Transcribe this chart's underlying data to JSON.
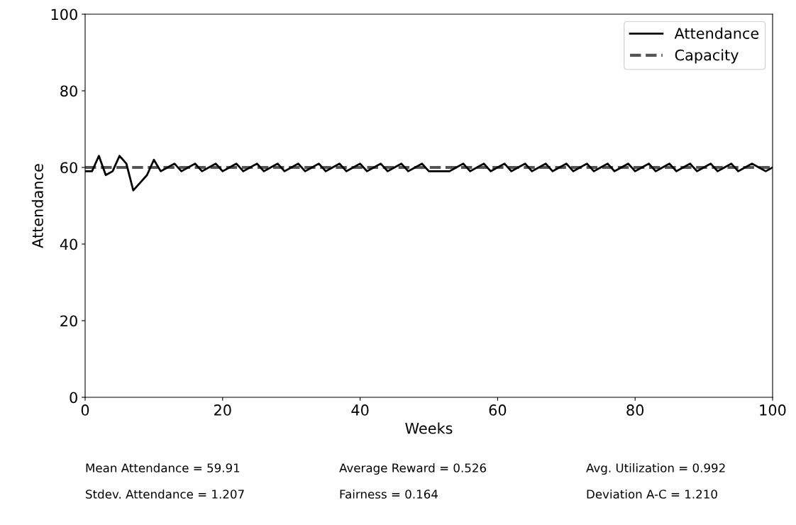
{
  "chart_data": {
    "type": "line",
    "xlabel": "Weeks",
    "ylabel": "Attendance",
    "xlim": [
      0,
      100
    ],
    "xticks": [
      0,
      20,
      40,
      60,
      80,
      100
    ],
    "ylim": [
      0,
      100
    ],
    "yticks": [
      0,
      20,
      40,
      60,
      80,
      100
    ],
    "grid": false,
    "legend": "top right",
    "series": [
      {
        "name": "Attendance",
        "color": "#000000",
        "line_style": "solid",
        "x": [
          0,
          1,
          2,
          3,
          4,
          5,
          6,
          7,
          8,
          9,
          10,
          11,
          12,
          13,
          14,
          15,
          16,
          17,
          18,
          19,
          20,
          21,
          22,
          23,
          24,
          25,
          26,
          27,
          28,
          29,
          30,
          31,
          32,
          33,
          34,
          35,
          36,
          37,
          38,
          39,
          40,
          41,
          42,
          43,
          44,
          45,
          46,
          47,
          48,
          49,
          50,
          51,
          52,
          53,
          54,
          55,
          56,
          57,
          58,
          59,
          60,
          61,
          62,
          63,
          64,
          65,
          66,
          67,
          68,
          69,
          70,
          71,
          72,
          73,
          74,
          75,
          76,
          77,
          78,
          79,
          80,
          81,
          82,
          83,
          84,
          85,
          86,
          87,
          88,
          89,
          90,
          91,
          92,
          93,
          94,
          95,
          96,
          97,
          98,
          99,
          100
        ],
        "values": [
          59,
          59,
          63,
          58,
          59,
          63,
          61,
          54,
          56,
          58,
          62,
          59,
          60,
          61,
          59,
          60,
          61,
          59,
          60,
          61,
          59,
          60,
          61,
          59,
          60,
          61,
          59,
          60,
          61,
          59,
          60,
          61,
          59,
          60,
          61,
          59,
          60,
          61,
          59,
          60,
          61,
          59,
          60,
          61,
          59,
          60,
          61,
          59,
          60,
          61,
          59,
          59,
          59,
          59,
          60,
          61,
          59,
          60,
          61,
          59,
          60,
          61,
          59,
          60,
          61,
          59,
          60,
          61,
          59,
          60,
          61,
          59,
          60,
          61,
          59,
          60,
          61,
          59,
          60,
          61,
          59,
          60,
          61,
          59,
          60,
          61,
          59,
          60,
          61,
          59,
          60,
          61,
          59,
          60,
          61,
          59,
          60,
          61,
          60,
          59,
          60
        ]
      },
      {
        "name": "Capacity",
        "color": "#555555",
        "line_style": "dashed",
        "x": [
          0,
          100
        ],
        "values": [
          60,
          60
        ]
      }
    ],
    "annotations": [
      "Mean Attendance = 59.91",
      "Average Reward = 0.526",
      "Avg. Utilization = 0.992",
      "Stdev. Attendance = 1.207",
      "Fairness = 0.164",
      "Deviation A-C = 1.210"
    ]
  }
}
